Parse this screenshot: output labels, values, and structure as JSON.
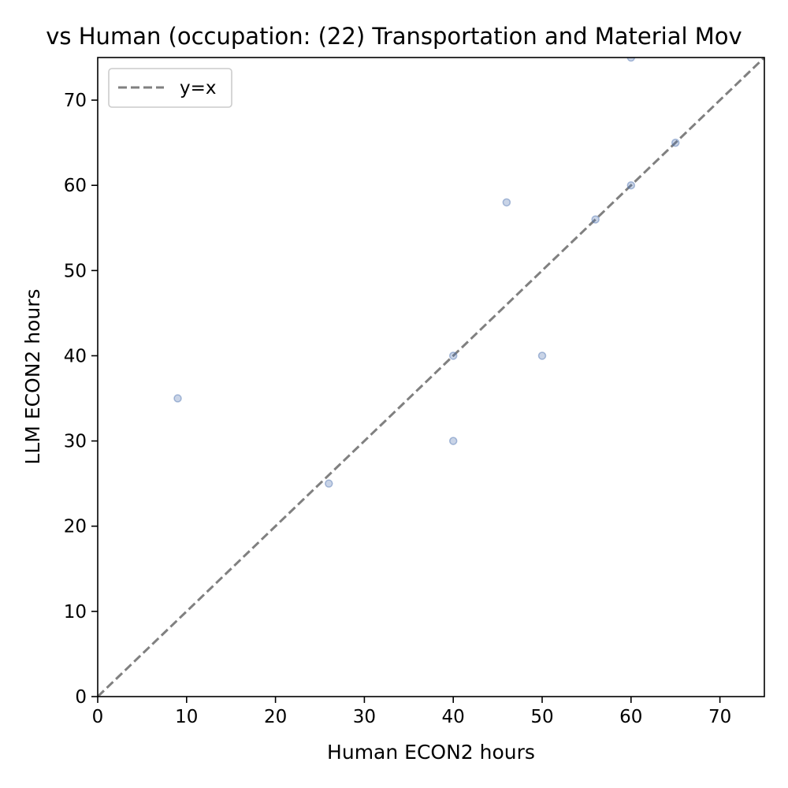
{
  "chart_data": {
    "type": "scatter",
    "title": "vs Human (occupation: (22) Transportation and Material Mov",
    "xlabel": "Human ECON2 hours",
    "ylabel": "LLM ECON2 hours",
    "xlim": [
      0,
      75
    ],
    "ylim": [
      0,
      75
    ],
    "xticks": [
      "0",
      "10",
      "20",
      "30",
      "40",
      "50",
      "60",
      "70"
    ],
    "yticks": [
      "0",
      "10",
      "20",
      "30",
      "40",
      "50",
      "60",
      "70"
    ],
    "grid": false,
    "legend": {
      "placement": "upper-left",
      "entries": [
        "y=x"
      ]
    },
    "series": [
      {
        "points": [
          {
            "x": 9,
            "y": 35
          },
          {
            "x": 26,
            "y": 25
          },
          {
            "x": 40,
            "y": 40
          },
          {
            "x": 40,
            "y": 30
          },
          {
            "x": 46,
            "y": 58
          },
          {
            "x": 50,
            "y": 40
          },
          {
            "x": 56,
            "y": 56
          },
          {
            "x": 60,
            "y": 60
          },
          {
            "x": 60,
            "y": 75
          },
          {
            "x": 65,
            "y": 65
          }
        ],
        "color": "#4c72b0"
      }
    ],
    "reference_line": {
      "name": "y=x",
      "from": [
        0,
        0
      ],
      "to": [
        75,
        75
      ],
      "style": "dashed",
      "color": "#808080"
    }
  }
}
